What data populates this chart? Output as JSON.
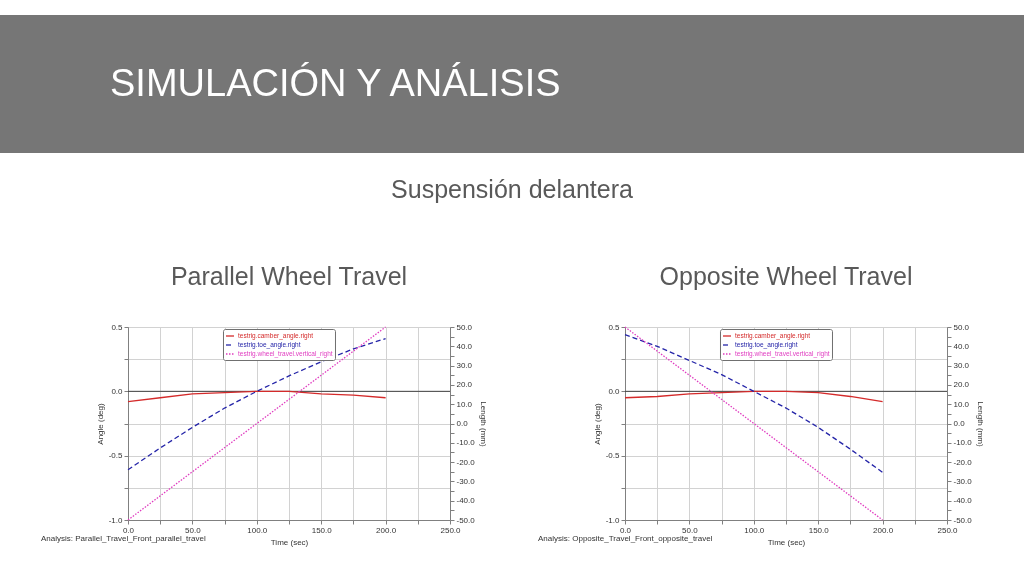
{
  "chart_data": [
    {
      "type": "other",
      "title": "SIMULACIÓN Y ANÁLISIS",
      "subtitle": "Suspensión delantera"
    },
    {
      "type": "line",
      "title": "Parallel Wheel Travel",
      "xlabel": "Time (sec)",
      "ylabel": "Angle (deg)",
      "y2label": "Length (mm)",
      "annotations": [
        "Analysis: Parallel_Travel_Front_parallel_travel"
      ],
      "x": [
        0,
        25,
        50,
        75,
        100,
        125,
        150,
        175,
        200
      ],
      "series": [
        {
          "name": "testrig.camber_angle.right",
          "color": "#d42a2a",
          "line_style": "solid",
          "values": [
            -0.08,
            -0.05,
            -0.02,
            -0.01,
            0.0,
            0.0,
            -0.02,
            -0.03,
            -0.05
          ]
        },
        {
          "name": "testrig.toe_angle.right",
          "color": "#2424a8",
          "line_style": "dashed",
          "values": [
            -0.61,
            -0.44,
            -0.28,
            -0.13,
            0.0,
            0.12,
            0.23,
            0.33,
            0.41
          ]
        },
        {
          "name": "testrig.wheel_travel.vertical_right",
          "color": "#e03cc0",
          "line_style": "dotted",
          "axis": "y2",
          "x": [
            0,
            100,
            200
          ],
          "values": [
            -50,
            0,
            50
          ]
        }
      ],
      "xlim": [
        0,
        250
      ],
      "xticks": [
        {
          "value": 0,
          "label": "0.0"
        },
        {
          "value": 25,
          "label": null
        },
        {
          "value": 50,
          "label": "50.0"
        },
        {
          "value": 75,
          "label": null
        },
        {
          "value": 100,
          "label": "100.0"
        },
        {
          "value": 125,
          "label": null
        },
        {
          "value": 150,
          "label": "150.0"
        },
        {
          "value": 175,
          "label": null
        },
        {
          "value": 200,
          "label": "200.0"
        },
        {
          "value": 225,
          "label": null
        },
        {
          "value": 250,
          "label": "250.0"
        }
      ],
      "ylim": [
        -1.0,
        0.5
      ],
      "yticks": [
        {
          "value": -1,
          "label": "-1.0"
        },
        {
          "value": -0.75,
          "label": null
        },
        {
          "value": -0.5,
          "label": "-0.5"
        },
        {
          "value": -0.25,
          "label": null
        },
        {
          "value": 0,
          "label": "0.0"
        },
        {
          "value": 0.25,
          "label": null
        },
        {
          "value": 0.5,
          "label": "0.5"
        }
      ],
      "y2lim": [
        -50,
        50
      ],
      "y2ticks": [
        {
          "value": -50,
          "label": "-50.0"
        },
        {
          "value": -45,
          "label": null
        },
        {
          "value": -40,
          "label": "-40.0"
        },
        {
          "value": -35,
          "label": null
        },
        {
          "value": -30,
          "label": "-30.0"
        },
        {
          "value": -25,
          "label": null
        },
        {
          "value": -20,
          "label": "-20.0"
        },
        {
          "value": -15,
          "label": null
        },
        {
          "value": -10,
          "label": "-10.0"
        },
        {
          "value": -5,
          "label": null
        },
        {
          "value": 0,
          "label": "0.0"
        },
        {
          "value": 5,
          "label": null
        },
        {
          "value": 10,
          "label": "10.0"
        },
        {
          "value": 15,
          "label": null
        },
        {
          "value": 20,
          "label": "20.0"
        },
        {
          "value": 25,
          "label": null
        },
        {
          "value": 30,
          "label": "30.0"
        },
        {
          "value": 35,
          "label": null
        },
        {
          "value": 40,
          "label": "40.0"
        },
        {
          "value": 45,
          "label": null
        },
        {
          "value": 50,
          "label": "50.0"
        }
      ],
      "grid": true,
      "legend": "top",
      "ref_lines": [
        {
          "axis": "y",
          "value": 0,
          "color": "#404040"
        }
      ]
    },
    {
      "type": "line",
      "title": "Opposite Wheel Travel",
      "xlabel": "Time (sec)",
      "ylabel": "Angle (deg)",
      "y2label": "Length (mm)",
      "annotations": [
        "Analysis: Opposite_Travel_Front_opposite_travel"
      ],
      "x": [
        0,
        25,
        50,
        75,
        100,
        125,
        150,
        175,
        200
      ],
      "series": [
        {
          "name": "testrig.camber_angle.right",
          "color": "#d42a2a",
          "line_style": "solid",
          "values": [
            -0.05,
            -0.04,
            -0.02,
            -0.01,
            0.0,
            0.0,
            -0.01,
            -0.04,
            -0.08
          ]
        },
        {
          "name": "testrig.toe_angle.right",
          "color": "#2424a8",
          "line_style": "dashed",
          "values": [
            0.44,
            0.35,
            0.24,
            0.13,
            0.0,
            -0.13,
            -0.28,
            -0.45,
            -0.63
          ]
        },
        {
          "name": "testrig.wheel_travel.vertical_right",
          "color": "#e03cc0",
          "line_style": "dotted",
          "axis": "y2",
          "x": [
            0,
            100,
            200
          ],
          "values": [
            50,
            0,
            -50
          ]
        }
      ],
      "xlim": [
        0,
        250
      ],
      "xticks": [
        {
          "value": 0,
          "label": "0.0"
        },
        {
          "value": 25,
          "label": null
        },
        {
          "value": 50,
          "label": "50.0"
        },
        {
          "value": 75,
          "label": null
        },
        {
          "value": 100,
          "label": "100.0"
        },
        {
          "value": 125,
          "label": null
        },
        {
          "value": 150,
          "label": "150.0"
        },
        {
          "value": 175,
          "label": null
        },
        {
          "value": 200,
          "label": "200.0"
        },
        {
          "value": 225,
          "label": null
        },
        {
          "value": 250,
          "label": "250.0"
        }
      ],
      "ylim": [
        -1.0,
        0.5
      ],
      "yticks": [
        {
          "value": -1,
          "label": "-1.0"
        },
        {
          "value": -0.75,
          "label": null
        },
        {
          "value": -0.5,
          "label": "-0.5"
        },
        {
          "value": -0.25,
          "label": null
        },
        {
          "value": 0,
          "label": "0.0"
        },
        {
          "value": 0.25,
          "label": null
        },
        {
          "value": 0.5,
          "label": "0.5"
        }
      ],
      "y2lim": [
        -50,
        50
      ],
      "y2ticks": [
        {
          "value": -50,
          "label": "-50.0"
        },
        {
          "value": -45,
          "label": null
        },
        {
          "value": -40,
          "label": "-40.0"
        },
        {
          "value": -35,
          "label": null
        },
        {
          "value": -30,
          "label": "-30.0"
        },
        {
          "value": -25,
          "label": null
        },
        {
          "value": -20,
          "label": "-20.0"
        },
        {
          "value": -15,
          "label": null
        },
        {
          "value": -10,
          "label": "-10.0"
        },
        {
          "value": -5,
          "label": null
        },
        {
          "value": 0,
          "label": "0.0"
        },
        {
          "value": 5,
          "label": null
        },
        {
          "value": 10,
          "label": "10.0"
        },
        {
          "value": 15,
          "label": null
        },
        {
          "value": 20,
          "label": "20.0"
        },
        {
          "value": 25,
          "label": null
        },
        {
          "value": 30,
          "label": "30.0"
        },
        {
          "value": 35,
          "label": null
        },
        {
          "value": 40,
          "label": "40.0"
        },
        {
          "value": 45,
          "label": null
        },
        {
          "value": 50,
          "label": "50.0"
        }
      ],
      "grid": true,
      "legend": "top",
      "ref_lines": [
        {
          "axis": "y",
          "value": 0,
          "color": "#404040"
        }
      ]
    }
  ]
}
